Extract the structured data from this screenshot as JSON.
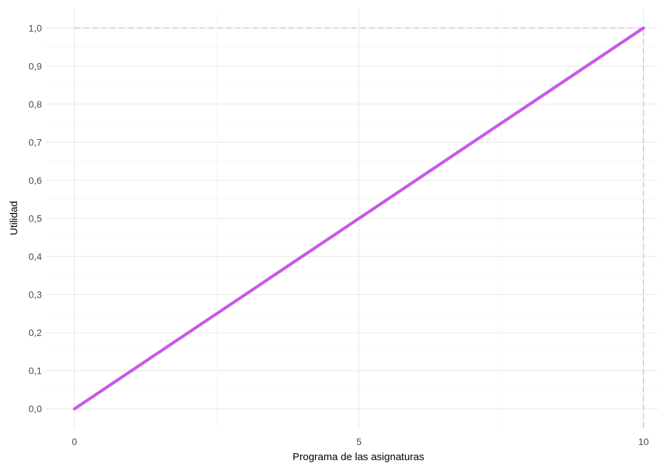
{
  "chart_data": {
    "type": "line",
    "title": "",
    "xlabel": "Programa de las asignaturas",
    "ylabel": "Utilidad",
    "xlim": [
      -0.5,
      10.25
    ],
    "ylim": [
      -0.05,
      1.05
    ],
    "grid": true,
    "x_ticks": [
      0,
      5,
      10
    ],
    "x_tick_labels": [
      "0",
      "5",
      "10"
    ],
    "y_ticks": [
      0.0,
      0.1,
      0.2,
      0.3,
      0.4,
      0.5,
      0.6,
      0.7,
      0.8,
      0.9,
      1.0
    ],
    "y_tick_labels": [
      "0,0",
      "0,1",
      "0,2",
      "0,3",
      "0,4",
      "0,5",
      "0,6",
      "0,7",
      "0,8",
      "0,9",
      "1,0"
    ],
    "series": [
      {
        "x": [
          0,
          10
        ],
        "y": [
          0.0,
          1.0
        ],
        "color": "#c95ae6"
      }
    ],
    "reference_lines": [
      {
        "orientation": "horizontal",
        "value": 1.0,
        "from": 0,
        "to": 10,
        "color": "#e9a8ec",
        "style": "dashed"
      },
      {
        "orientation": "vertical",
        "value": 10,
        "from": -0.05,
        "to": 1.0,
        "color": "#e9a8ec",
        "style": "dashed"
      }
    ]
  }
}
